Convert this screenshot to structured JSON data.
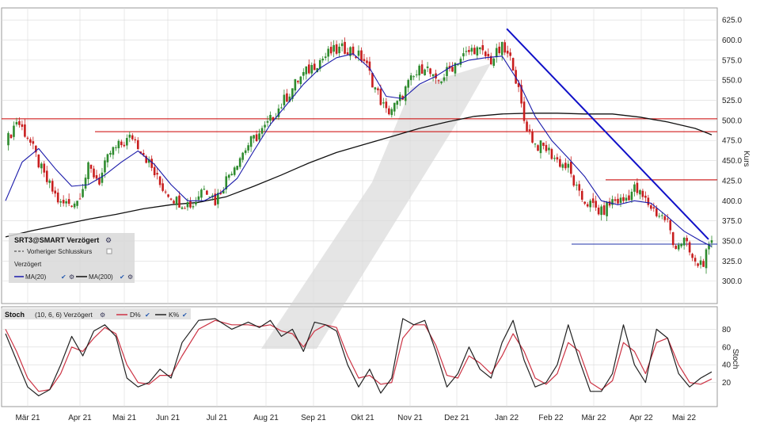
{
  "colors": {
    "up": "#2e8b2e",
    "down": "#c81e1e",
    "ma20": "#1a1aaa",
    "ma200": "#111111",
    "hline": "#cc0000",
    "trend": "#1010c8",
    "support": "#2233aa",
    "stoch_d": "#cc3344",
    "stoch_k": "#222222",
    "grid": "#d9d9d9",
    "watermark": "#cfcfcf"
  },
  "legend": {
    "title": "SRT3@SMART Verzögert",
    "prev_close": "Vorheriger Schlusskurs",
    "delayed": "Verzögert",
    "ma20": "MA(20)",
    "ma200": "MA(200)"
  },
  "stoch_legend": {
    "title": "Stoch",
    "params": "(10, 6, 6) Verzögert",
    "d": "D%",
    "k": "K%"
  },
  "chart_data": [
    {
      "type": "candlestick",
      "title": "SRT3@SMART Verzögert",
      "ylabel": "Kurs",
      "ylim": [
        272,
        640
      ],
      "yticks": [
        "300.0",
        "325.0",
        "350.0",
        "375.0",
        "400.0",
        "425.0",
        "450.0",
        "475.0",
        "500.0",
        "525.0",
        "550.0",
        "575.0",
        "600.0",
        "625.0"
      ],
      "x_tick_labels": [
        "Mär 21",
        "Apr 21",
        "Mai 21",
        "Jun 21",
        "Jul 21",
        "Aug 21",
        "Sep 21",
        "Okt 21",
        "Nov 21",
        "Dez 21",
        "Jan 22",
        "Feb 22",
        "Mär 22",
        "Apr 22",
        "Mai 22"
      ],
      "close_path": [
        [
          0,
          470
        ],
        [
          4,
          500
        ],
        [
          8,
          480
        ],
        [
          14,
          430
        ],
        [
          20,
          395
        ],
        [
          26,
          400
        ],
        [
          30,
          440
        ],
        [
          34,
          425
        ],
        [
          38,
          460
        ],
        [
          42,
          470
        ],
        [
          46,
          480
        ],
        [
          50,
          460
        ],
        [
          56,
          420
        ],
        [
          62,
          400
        ],
        [
          68,
          395
        ],
        [
          72,
          420
        ],
        [
          76,
          400
        ],
        [
          82,
          440
        ],
        [
          88,
          470
        ],
        [
          94,
          490
        ],
        [
          100,
          520
        ],
        [
          106,
          550
        ],
        [
          112,
          570
        ],
        [
          118,
          585
        ],
        [
          124,
          590
        ],
        [
          130,
          575
        ],
        [
          134,
          540
        ],
        [
          138,
          510
        ],
        [
          142,
          520
        ],
        [
          146,
          545
        ],
        [
          152,
          570
        ],
        [
          156,
          545
        ],
        [
          160,
          560
        ],
        [
          164,
          575
        ],
        [
          170,
          590
        ],
        [
          176,
          575
        ],
        [
          180,
          590
        ],
        [
          184,
          570
        ],
        [
          188,
          500
        ],
        [
          192,
          470
        ],
        [
          196,
          465
        ],
        [
          200,
          450
        ],
        [
          204,
          440
        ],
        [
          208,
          405
        ],
        [
          212,
          395
        ],
        [
          216,
          385
        ],
        [
          220,
          400
        ],
        [
          224,
          400
        ],
        [
          228,
          415
        ],
        [
          232,
          400
        ],
        [
          236,
          385
        ],
        [
          240,
          375
        ],
        [
          242,
          345
        ],
        [
          246,
          350
        ],
        [
          248,
          335
        ],
        [
          250,
          320
        ],
        [
          253,
          325
        ],
        [
          256,
          345
        ]
      ],
      "ma20_path": [
        [
          0,
          400
        ],
        [
          6,
          448
        ],
        [
          12,
          465
        ],
        [
          18,
          440
        ],
        [
          24,
          418
        ],
        [
          30,
          420
        ],
        [
          36,
          432
        ],
        [
          42,
          448
        ],
        [
          48,
          462
        ],
        [
          54,
          445
        ],
        [
          60,
          420
        ],
        [
          66,
          400
        ],
        [
          72,
          400
        ],
        [
          78,
          410
        ],
        [
          84,
          428
        ],
        [
          90,
          462
        ],
        [
          96,
          495
        ],
        [
          102,
          520
        ],
        [
          108,
          545
        ],
        [
          114,
          565
        ],
        [
          120,
          578
        ],
        [
          126,
          583
        ],
        [
          132,
          565
        ],
        [
          138,
          530
        ],
        [
          144,
          527
        ],
        [
          150,
          545
        ],
        [
          156,
          555
        ],
        [
          162,
          568
        ],
        [
          168,
          575
        ],
        [
          174,
          578
        ],
        [
          180,
          580
        ],
        [
          186,
          548
        ],
        [
          192,
          505
        ],
        [
          198,
          475
        ],
        [
          204,
          453
        ],
        [
          210,
          430
        ],
        [
          216,
          400
        ],
        [
          222,
          395
        ],
        [
          228,
          400
        ],
        [
          234,
          397
        ],
        [
          240,
          380
        ],
        [
          246,
          362
        ],
        [
          252,
          350
        ],
        [
          256,
          343
        ]
      ],
      "ma200_path": [
        [
          0,
          355
        ],
        [
          10,
          363
        ],
        [
          20,
          370
        ],
        [
          30,
          377
        ],
        [
          40,
          383
        ],
        [
          50,
          390
        ],
        [
          60,
          395
        ],
        [
          70,
          398
        ],
        [
          80,
          405
        ],
        [
          90,
          418
        ],
        [
          100,
          432
        ],
        [
          110,
          447
        ],
        [
          120,
          460
        ],
        [
          130,
          470
        ],
        [
          140,
          480
        ],
        [
          150,
          490
        ],
        [
          160,
          498
        ],
        [
          170,
          505
        ],
        [
          180,
          508
        ],
        [
          190,
          509
        ],
        [
          200,
          509
        ],
        [
          210,
          508
        ],
        [
          220,
          508
        ],
        [
          230,
          504
        ],
        [
          240,
          498
        ],
        [
          250,
          490
        ],
        [
          256,
          482
        ]
      ],
      "horizontal_lines": [
        502,
        486,
        426,
        346
      ],
      "trendline": [
        [
          184,
          614
        ],
        [
          256,
          352
        ]
      ]
    },
    {
      "type": "line",
      "title": "Stoch",
      "ylabel": "Stoch",
      "ylim": [
        0,
        100
      ],
      "yticks": [
        "20",
        "40",
        "60",
        "80"
      ],
      "k_path": [
        [
          0,
          75
        ],
        [
          4,
          45
        ],
        [
          8,
          15
        ],
        [
          12,
          5
        ],
        [
          16,
          12
        ],
        [
          20,
          40
        ],
        [
          24,
          72
        ],
        [
          28,
          50
        ],
        [
          32,
          78
        ],
        [
          36,
          85
        ],
        [
          40,
          72
        ],
        [
          44,
          25
        ],
        [
          48,
          15
        ],
        [
          52,
          20
        ],
        [
          56,
          35
        ],
        [
          60,
          25
        ],
        [
          64,
          65
        ],
        [
          70,
          90
        ],
        [
          76,
          92
        ],
        [
          82,
          80
        ],
        [
          88,
          88
        ],
        [
          92,
          82
        ],
        [
          96,
          90
        ],
        [
          100,
          72
        ],
        [
          104,
          80
        ],
        [
          108,
          55
        ],
        [
          112,
          88
        ],
        [
          116,
          85
        ],
        [
          120,
          78
        ],
        [
          124,
          40
        ],
        [
          128,
          15
        ],
        [
          132,
          35
        ],
        [
          136,
          8
        ],
        [
          140,
          25
        ],
        [
          144,
          92
        ],
        [
          148,
          85
        ],
        [
          152,
          90
        ],
        [
          156,
          55
        ],
        [
          160,
          15
        ],
        [
          164,
          30
        ],
        [
          168,
          60
        ],
        [
          172,
          35
        ],
        [
          176,
          25
        ],
        [
          180,
          65
        ],
        [
          184,
          90
        ],
        [
          188,
          45
        ],
        [
          192,
          15
        ],
        [
          196,
          20
        ],
        [
          200,
          40
        ],
        [
          204,
          85
        ],
        [
          208,
          45
        ],
        [
          212,
          10
        ],
        [
          216,
          10
        ],
        [
          220,
          30
        ],
        [
          224,
          85
        ],
        [
          228,
          40
        ],
        [
          232,
          20
        ],
        [
          236,
          80
        ],
        [
          240,
          70
        ],
        [
          244,
          30
        ],
        [
          248,
          15
        ],
        [
          252,
          25
        ],
        [
          256,
          32
        ]
      ],
      "d_path": [
        [
          0,
          80
        ],
        [
          4,
          55
        ],
        [
          8,
          25
        ],
        [
          12,
          10
        ],
        [
          16,
          12
        ],
        [
          20,
          30
        ],
        [
          24,
          60
        ],
        [
          28,
          55
        ],
        [
          32,
          70
        ],
        [
          36,
          82
        ],
        [
          40,
          75
        ],
        [
          44,
          40
        ],
        [
          48,
          20
        ],
        [
          52,
          18
        ],
        [
          56,
          28
        ],
        [
          60,
          28
        ],
        [
          64,
          50
        ],
        [
          70,
          80
        ],
        [
          76,
          90
        ],
        [
          82,
          85
        ],
        [
          88,
          85
        ],
        [
          92,
          83
        ],
        [
          96,
          85
        ],
        [
          100,
          78
        ],
        [
          104,
          75
        ],
        [
          108,
          60
        ],
        [
          112,
          78
        ],
        [
          116,
          85
        ],
        [
          120,
          82
        ],
        [
          124,
          50
        ],
        [
          128,
          25
        ],
        [
          132,
          28
        ],
        [
          136,
          18
        ],
        [
          140,
          20
        ],
        [
          144,
          70
        ],
        [
          148,
          85
        ],
        [
          152,
          85
        ],
        [
          156,
          62
        ],
        [
          160,
          28
        ],
        [
          164,
          25
        ],
        [
          168,
          50
        ],
        [
          172,
          42
        ],
        [
          176,
          30
        ],
        [
          180,
          50
        ],
        [
          184,
          75
        ],
        [
          188,
          55
        ],
        [
          192,
          25
        ],
        [
          196,
          18
        ],
        [
          200,
          30
        ],
        [
          204,
          65
        ],
        [
          208,
          55
        ],
        [
          212,
          20
        ],
        [
          216,
          12
        ],
        [
          220,
          22
        ],
        [
          224,
          65
        ],
        [
          228,
          55
        ],
        [
          232,
          30
        ],
        [
          236,
          65
        ],
        [
          240,
          70
        ],
        [
          244,
          40
        ],
        [
          248,
          20
        ],
        [
          252,
          18
        ],
        [
          256,
          24
        ]
      ]
    }
  ]
}
